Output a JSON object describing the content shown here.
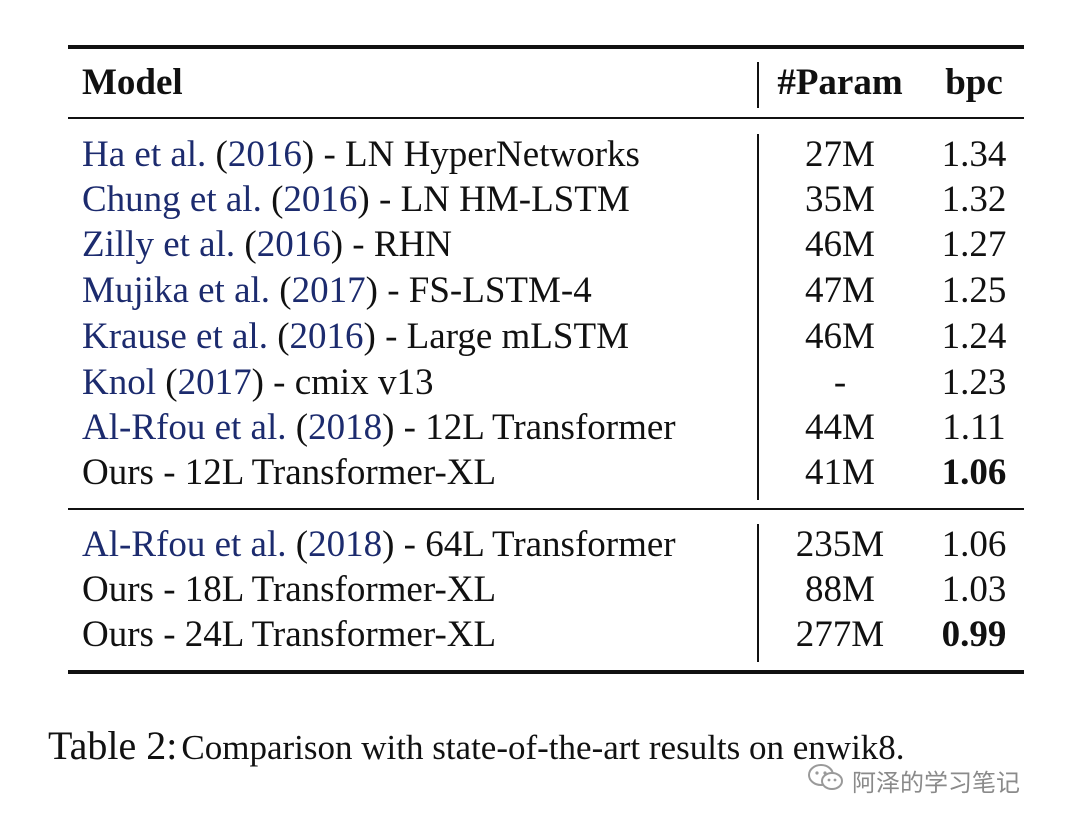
{
  "table": {
    "headers": {
      "model": "Model",
      "param": "#Param",
      "bpc": "bpc"
    },
    "group1": [
      {
        "cite": "Ha et al.",
        "year": "2016",
        "rest": ") - LN HyperNetworks",
        "param": "27M",
        "bpc": "1.34",
        "bold": false
      },
      {
        "cite": "Chung et al.",
        "year": "2016",
        "rest": ") - LN HM-LSTM",
        "param": "35M",
        "bpc": "1.32",
        "bold": false
      },
      {
        "cite": "Zilly et al.",
        "year": "2016",
        "rest": ") - RHN",
        "param": "46M",
        "bpc": "1.27",
        "bold": false
      },
      {
        "cite": "Mujika et al.",
        "year": "2017",
        "rest": ") - FS-LSTM-4",
        "param": "47M",
        "bpc": "1.25",
        "bold": false
      },
      {
        "cite": "Krause et al.",
        "year": "2016",
        "rest": ") - Large mLSTM",
        "param": "46M",
        "bpc": "1.24",
        "bold": false
      },
      {
        "cite": "Knol",
        "year": "2017",
        "rest": ") - cmix v13",
        "param": "-",
        "bpc": "1.23",
        "bold": false
      },
      {
        "cite": "Al-Rfou et al.",
        "year": "2018",
        "rest": ") - 12L Transformer",
        "param": "44M",
        "bpc": "1.11",
        "bold": false
      },
      {
        "text": "Ours - 12L Transformer-XL",
        "param": "41M",
        "bpc": "1.06",
        "bold": true
      }
    ],
    "group2": [
      {
        "cite": "Al-Rfou et al.",
        "year": "2018",
        "rest": ") - 64L Transformer",
        "param": "235M",
        "bpc": "1.06",
        "bold": false
      },
      {
        "text": "Ours - 18L Transformer-XL",
        "param": "88M",
        "bpc": "1.03",
        "bold": false
      },
      {
        "text": "Ours - 24L Transformer-XL",
        "param": "277M",
        "bpc": "0.99",
        "bold": true
      }
    ]
  },
  "caption": {
    "label": "Table 2:",
    "text": "Comparison with state-of-the-art results on enwik8."
  },
  "watermark": {
    "icon": "wechat-icon",
    "text": "阿泽的学习笔记"
  }
}
